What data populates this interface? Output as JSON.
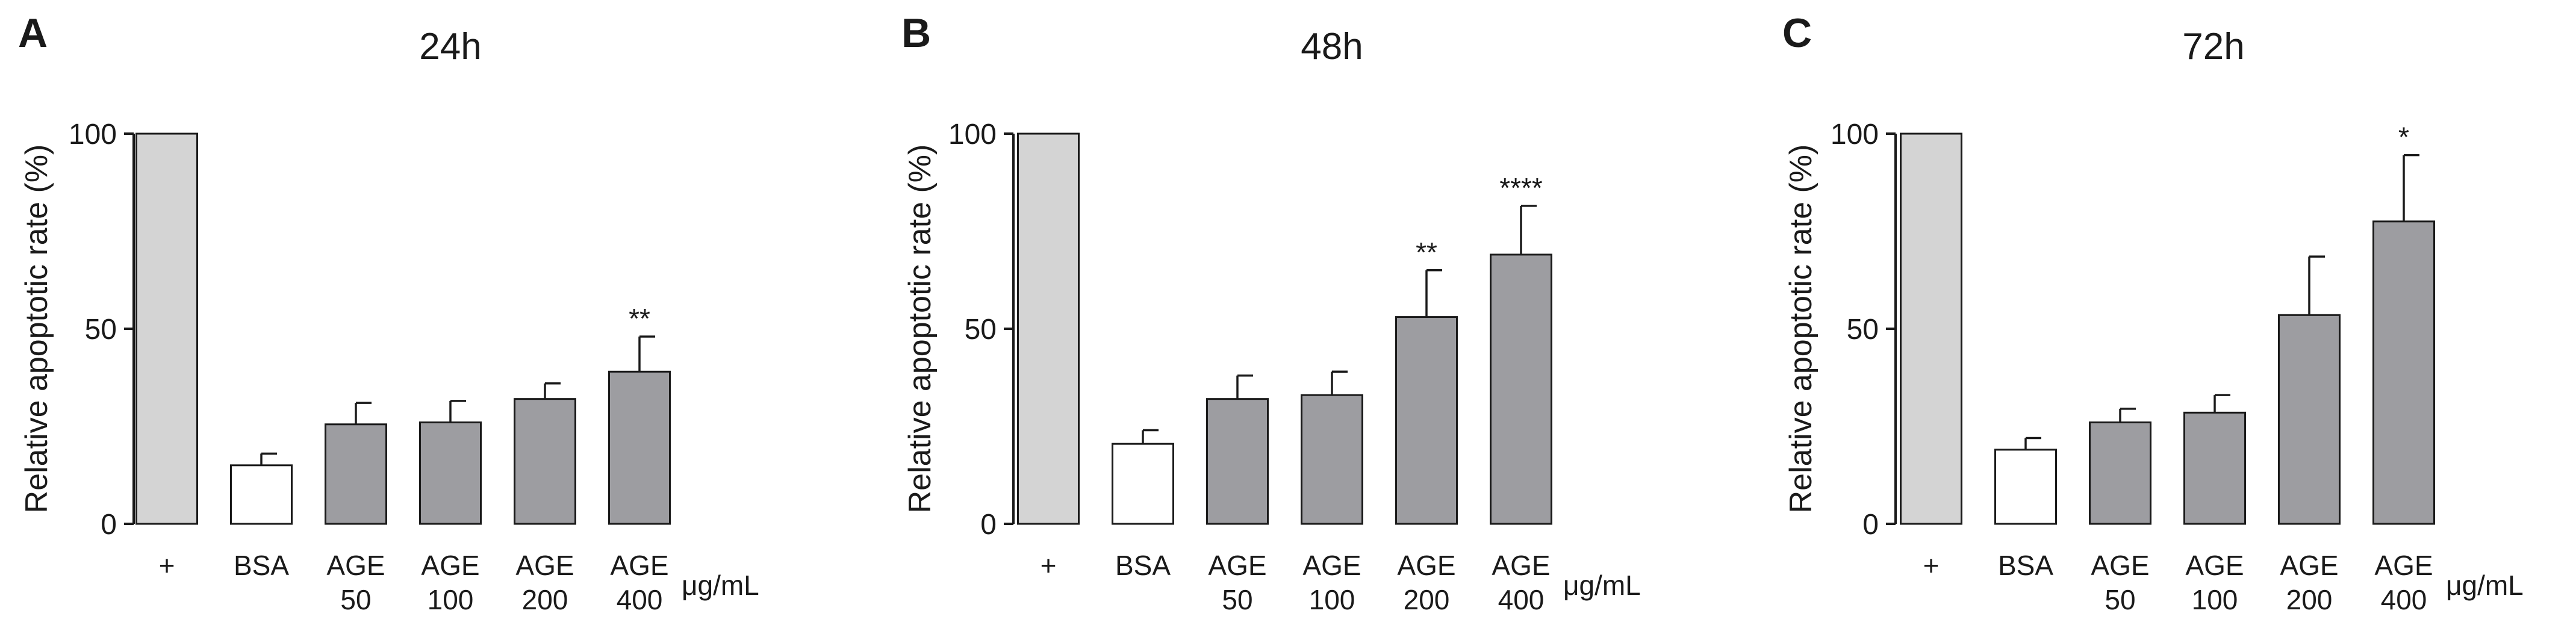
{
  "colors": {
    "positive": "#d4d4d4",
    "bsa": "#ffffff",
    "age": "#9d9da1",
    "stroke": "#1a1a1a"
  },
  "chart_data": [
    {
      "type": "bar",
      "panel": "A",
      "title": "24h",
      "ylabel": "Relative apoptotic rate (%)",
      "xlabel": "",
      "unit": "μg/mL",
      "ylim": [
        0,
        100
      ],
      "yticks": [
        "0",
        "50",
        "100"
      ],
      "categories": [
        [
          "+"
        ],
        [
          "BSA"
        ],
        [
          "AGE",
          "50"
        ],
        [
          "AGE",
          "100"
        ],
        [
          "AGE",
          "200"
        ],
        [
          "AGE",
          "400"
        ]
      ],
      "values": [
        100,
        15,
        25.5,
        26,
        32,
        39
      ],
      "errors": [
        0,
        3,
        5.5,
        5.5,
        4,
        9
      ],
      "fills": [
        "positive",
        "bsa",
        "age",
        "age",
        "age",
        "age"
      ],
      "significance": [
        "",
        "",
        "",
        "",
        "",
        "**"
      ]
    },
    {
      "type": "bar",
      "panel": "B",
      "title": "48h",
      "ylabel": "Relative apoptotic rate (%)",
      "xlabel": "",
      "unit": "μg/mL",
      "ylim": [
        0,
        100
      ],
      "yticks": [
        "0",
        "50",
        "100"
      ],
      "categories": [
        [
          "+"
        ],
        [
          "BSA"
        ],
        [
          "AGE",
          "50"
        ],
        [
          "AGE",
          "100"
        ],
        [
          "AGE",
          "200"
        ],
        [
          "AGE",
          "400"
        ]
      ],
      "values": [
        100,
        20.5,
        32,
        33,
        53,
        69
      ],
      "errors": [
        0,
        3.5,
        6,
        6,
        12,
        12.5
      ],
      "fills": [
        "positive",
        "bsa",
        "age",
        "age",
        "age",
        "age"
      ],
      "significance": [
        "",
        "",
        "",
        "",
        "**",
        "****"
      ]
    },
    {
      "type": "bar",
      "panel": "C",
      "title": "72h",
      "ylabel": "Relative apoptotic rate (%)",
      "xlabel": "",
      "unit": "μg/mL",
      "ylim": [
        0,
        100
      ],
      "yticks": [
        "0",
        "50",
        "100"
      ],
      "categories": [
        [
          "+"
        ],
        [
          "BSA"
        ],
        [
          "AGE",
          "50"
        ],
        [
          "AGE",
          "100"
        ],
        [
          "AGE",
          "200"
        ],
        [
          "AGE",
          "400"
        ]
      ],
      "values": [
        100,
        19,
        26,
        28.5,
        53.5,
        77.5
      ],
      "errors": [
        0,
        3,
        3.5,
        4.5,
        15,
        17
      ],
      "fills": [
        "positive",
        "bsa",
        "age",
        "age",
        "age",
        "age"
      ],
      "significance": [
        "",
        "",
        "",
        "",
        "",
        "*"
      ]
    }
  ]
}
